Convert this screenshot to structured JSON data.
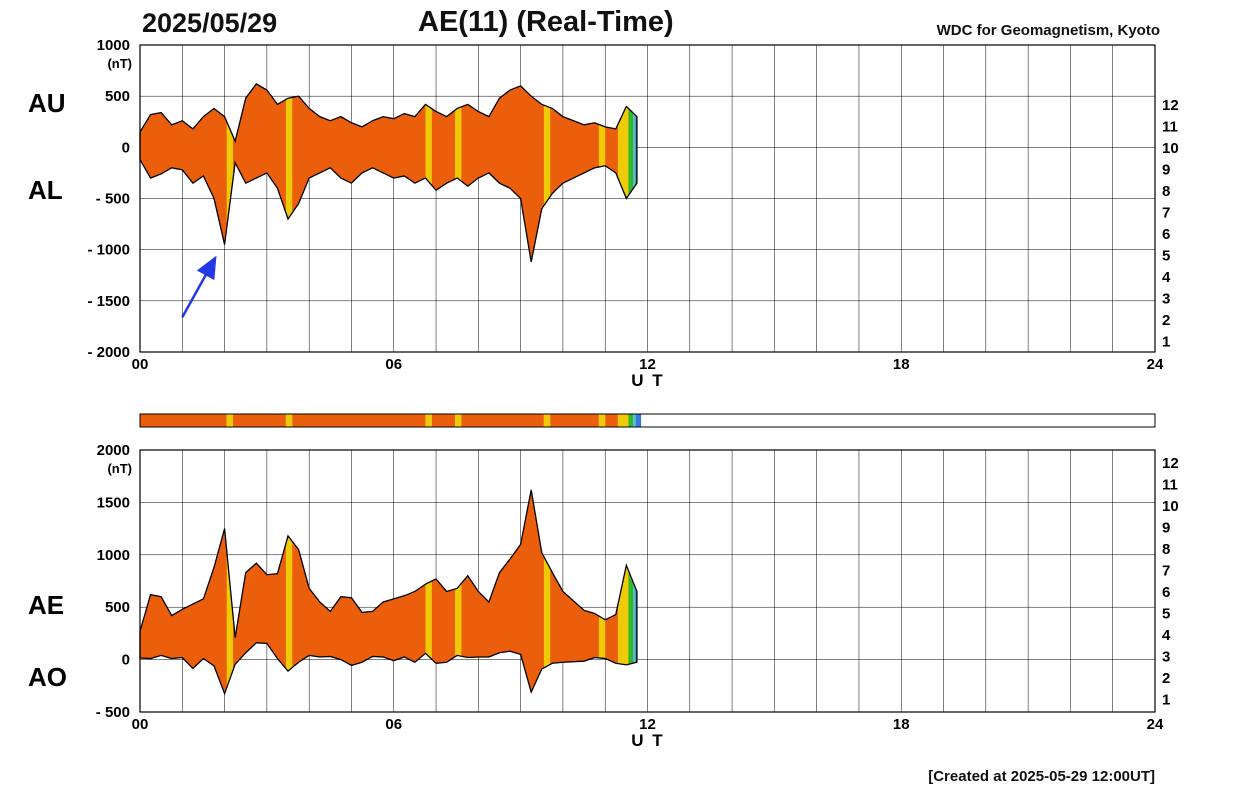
{
  "header": {
    "date": "2025/05/29",
    "title": "AE(11) (Real-Time)",
    "source": "WDC for Geomagnetism, Kyoto"
  },
  "footer": {
    "created_note": "[Created at 2025-05-29 12:00UT]"
  },
  "axis": {
    "ut_label": "U T",
    "unit_label": "(nT)",
    "xticks": [
      0,
      6,
      12,
      18,
      24
    ],
    "xtick_labels": [
      "00",
      "06",
      "12",
      "18",
      "24"
    ]
  },
  "panels": {
    "top": {
      "left_labels": [
        "AU",
        "AL"
      ]
    },
    "bottom": {
      "left_labels": [
        "AE",
        "AO"
      ]
    }
  },
  "station_legend": [
    {
      "count": "12",
      "color": "#EE3D8F"
    },
    {
      "count": "11",
      "color": "#F23A17"
    },
    {
      "count": "10",
      "color": "#EB5E0B"
    },
    {
      "count": "9",
      "color": "#EFCA08"
    },
    {
      "count": "8",
      "color": "#2EB82E"
    },
    {
      "count": "7",
      "color": "#4FC3C7"
    },
    {
      "count": "6",
      "color": "#3B77E0"
    },
    {
      "count": "5",
      "color": "#6A5ACD"
    },
    {
      "count": "4",
      "color": "#CC4FD0"
    },
    {
      "count": "3",
      "color": "#111111"
    },
    {
      "count": "2",
      "color": "#8C8C8C"
    },
    {
      "count": "1",
      "color": "#C8C8C8"
    }
  ],
  "colors": {
    "grid": "#000000",
    "trace_outline": "#000000",
    "no_data_bar": "#FFFFFF",
    "annotation_arrow": "#2438E8"
  },
  "annotation": {
    "shape": "arrow",
    "color": "#2438E8",
    "from_x": 1.0,
    "from_y": -1660,
    "to_x": 1.78,
    "to_y": -1080
  },
  "availability_segments": [
    {
      "from": 0,
      "to": 2.05,
      "stations": 10
    },
    {
      "from": 2.05,
      "to": 2.2,
      "stations": 9
    },
    {
      "from": 2.2,
      "to": 3.45,
      "stations": 10
    },
    {
      "from": 3.45,
      "to": 3.6,
      "stations": 9
    },
    {
      "from": 3.6,
      "to": 6.75,
      "stations": 10
    },
    {
      "from": 6.75,
      "to": 6.9,
      "stations": 9
    },
    {
      "from": 6.9,
      "to": 7.45,
      "stations": 10
    },
    {
      "from": 7.45,
      "to": 7.6,
      "stations": 9
    },
    {
      "from": 7.6,
      "to": 9.55,
      "stations": 10
    },
    {
      "from": 9.55,
      "to": 9.7,
      "stations": 9
    },
    {
      "from": 9.7,
      "to": 10.85,
      "stations": 10
    },
    {
      "from": 10.85,
      "to": 11.0,
      "stations": 9
    },
    {
      "from": 11.0,
      "to": 11.3,
      "stations": 10
    },
    {
      "from": 11.3,
      "to": 11.55,
      "stations": 9
    },
    {
      "from": 11.55,
      "to": 11.66,
      "stations": 8
    },
    {
      "from": 11.66,
      "to": 11.72,
      "stations": 7
    },
    {
      "from": 11.72,
      "to": 11.85,
      "stations": 6
    }
  ],
  "chart_data": [
    {
      "type": "area",
      "panel": "top",
      "title": "AU and AL auroral electrojet indices, 2025/05/29 (real-time)",
      "xlabel": "U T",
      "ylabel": "(nT)",
      "xlim": [
        0,
        24
      ],
      "ylim": [
        -2000,
        1000
      ],
      "xticks": [
        0,
        6,
        12,
        18,
        24
      ],
      "yticks": [
        1000,
        500,
        0,
        -500,
        -1000,
        -1500,
        -2000
      ],
      "grid": true,
      "x_start": 0,
      "x_step": 0.25,
      "series": [
        {
          "name": "AU",
          "values": [
            150,
            320,
            340,
            220,
            260,
            180,
            300,
            380,
            300,
            60,
            480,
            620,
            560,
            420,
            480,
            500,
            380,
            300,
            260,
            300,
            240,
            200,
            260,
            300,
            280,
            330,
            300,
            420,
            350,
            300,
            380,
            420,
            350,
            300,
            480,
            560,
            600,
            500,
            420,
            380,
            300,
            260,
            220,
            240,
            200,
            180,
            400,
            300
          ]
        },
        {
          "name": "AL",
          "values": [
            -120,
            -300,
            -260,
            -200,
            -220,
            -350,
            -280,
            -500,
            -950,
            -150,
            -350,
            -300,
            -250,
            -400,
            -700,
            -550,
            -300,
            -250,
            -200,
            -300,
            -350,
            -250,
            -200,
            -250,
            -300,
            -280,
            -350,
            -300,
            -420,
            -350,
            -300,
            -380,
            -300,
            -250,
            -350,
            -400,
            -500,
            -1120,
            -600,
            -450,
            -350,
            -300,
            -250,
            -200,
            -180,
            -250,
            -500,
            -350
          ]
        }
      ]
    },
    {
      "type": "area",
      "panel": "bottom",
      "title": "AE and AO auroral electrojet indices, 2025/05/29 (real-time)",
      "xlabel": "U T",
      "ylabel": "(nT)",
      "xlim": [
        0,
        24
      ],
      "ylim": [
        -500,
        2000
      ],
      "xticks": [
        0,
        6,
        12,
        18,
        24
      ],
      "yticks": [
        2000,
        1500,
        1000,
        500,
        0,
        -500
      ],
      "grid": true,
      "x_start": 0,
      "x_step": 0.25,
      "series": [
        {
          "name": "AE",
          "values": [
            270,
            620,
            600,
            420,
            480,
            530,
            580,
            880,
            1250,
            210,
            830,
            920,
            810,
            820,
            1180,
            1050,
            680,
            550,
            460,
            600,
            590,
            450,
            460,
            550,
            580,
            610,
            650,
            720,
            770,
            650,
            680,
            800,
            650,
            550,
            830,
            960,
            1100,
            1620,
            1020,
            830,
            650,
            560,
            470,
            440,
            380,
            430,
            900,
            650
          ]
        },
        {
          "name": "AO",
          "values": [
            15,
            10,
            40,
            10,
            20,
            -85,
            10,
            -60,
            -325,
            -45,
            65,
            160,
            155,
            10,
            -110,
            -25,
            40,
            25,
            30,
            0,
            -55,
            -25,
            30,
            25,
            -10,
            25,
            -25,
            60,
            -35,
            -25,
            40,
            20,
            25,
            25,
            65,
            80,
            50,
            -310,
            -90,
            -35,
            -25,
            -20,
            -15,
            20,
            10,
            -35,
            -50,
            -25
          ]
        }
      ]
    }
  ]
}
